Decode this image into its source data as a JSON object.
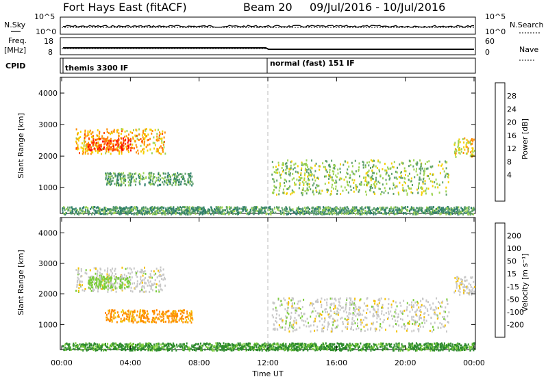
{
  "header": {
    "station": "Fort Hays East (fitACF)",
    "beam": "Beam 20",
    "dates": "09/Jul/2016 - 10/Jul/2016"
  },
  "left_labels": {
    "nsky": "N.Sky",
    "freq": "Freq.",
    "freq_unit": "[MHz]",
    "cpid": "CPID"
  },
  "right_labels": {
    "nsearch": "N.Search",
    "nave": "Nave"
  },
  "cpid_modes": [
    "themis 3300 IF",
    "normal (fast) 151 IF"
  ],
  "x_axis": {
    "label": "Time UT",
    "ticks": [
      "00:00",
      "04:00",
      "08:00",
      "12:00",
      "16:00",
      "20:00",
      "00:00"
    ]
  },
  "noise_panel": {
    "left_ticks": [
      "10^5",
      "10^0"
    ],
    "right_ticks": [
      "10^5",
      "10^0"
    ]
  },
  "freq_panel": {
    "left_ticks": [
      "18",
      "8"
    ],
    "right_ticks": [
      "60",
      "0"
    ]
  },
  "power_panel": {
    "ylabel": "Slant Range [km]",
    "yticks": [
      "4000",
      "3000",
      "2000",
      "1000"
    ],
    "cbar_label": "Power [dB]",
    "cbar_ticks": [
      "28",
      "24",
      "20",
      "16",
      "12",
      "8",
      "4"
    ],
    "cbar_colors": [
      "#0000ff",
      "#1a3ea8",
      "#2e7d6b",
      "#5da06a",
      "#9ed454",
      "#f4d000",
      "#ff8c00",
      "#ff4a00",
      "#ff0000"
    ]
  },
  "velocity_panel": {
    "ylabel": "Slant Range [km]",
    "yticks": [
      "4000",
      "3000",
      "2000",
      "1000"
    ],
    "cbar_label": "Velocity [m s⁻¹]",
    "cbar_ticks": [
      "200",
      "100",
      "50",
      "15",
      "-15",
      "-50",
      "-100",
      "-200"
    ],
    "cbar_colors": [
      "#1a2fb0",
      "#1f5fc0",
      "#2e8b2e",
      "#7ccd3c",
      "#c8c8c8",
      "#f4c000",
      "#ff8c00",
      "#ff4a00",
      "#ff0000"
    ]
  },
  "chart_data": {
    "type": "heatmap",
    "x_range_hours": [
      0,
      24
    ],
    "y_range_km": [
      180,
      4500
    ],
    "mode_change_hour": 12,
    "echo_regions": [
      {
        "t0": 0.8,
        "t1": 6.0,
        "r0": 2100,
        "r1": 2900,
        "power": 20,
        "velocity": 0
      },
      {
        "t0": 1.5,
        "t1": 4.0,
        "r0": 2200,
        "r1": 2600,
        "power": 26,
        "velocity": -30
      },
      {
        "t0": 2.5,
        "t1": 7.6,
        "r0": 1100,
        "r1": 1500,
        "power": 10,
        "velocity": 60
      },
      {
        "t0": 12.2,
        "t1": 22.5,
        "r0": 800,
        "r1": 1900,
        "power": 13,
        "velocity": 0
      },
      {
        "t0": 22.8,
        "t1": 24,
        "r0": 2000,
        "r1": 2600,
        "power": 17,
        "velocity": 5
      },
      {
        "t0": 0.0,
        "t1": 24,
        "r0": 180,
        "r1": 420,
        "power": 9,
        "velocity": -60
      }
    ]
  }
}
